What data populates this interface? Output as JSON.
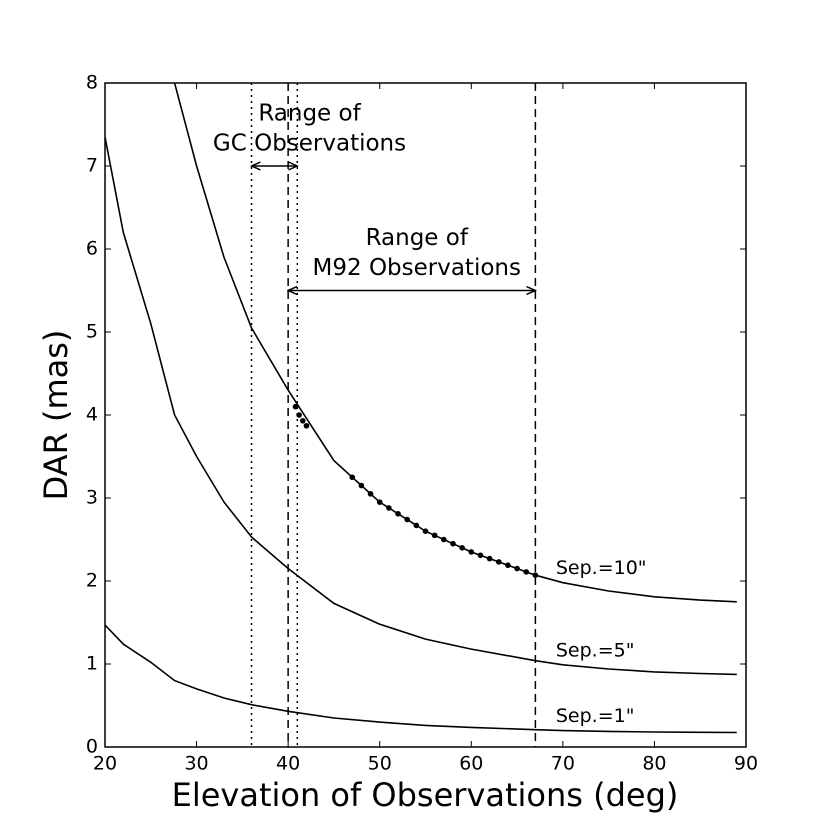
{
  "chart_data": {
    "type": "line",
    "xlabel": "Elevation of Observations (deg)",
    "ylabel": "DAR (mas)",
    "x": [
      20,
      22,
      25,
      27.6,
      30,
      33,
      36,
      40,
      45,
      50,
      55,
      60,
      67,
      70,
      75,
      80,
      85,
      89
    ],
    "series": [
      {
        "name": "Sep.=10\"",
        "color": "#000000",
        "values": [
          null,
          null,
          null,
          8,
          7.0,
          5.9,
          5.05,
          4.3,
          3.45,
          2.95,
          2.6,
          2.35,
          2.07,
          1.98,
          1.88,
          1.81,
          1.77,
          1.75
        ]
      },
      {
        "name": "Sep.=5\"",
        "color": "#000000",
        "values": [
          7.35,
          6.2,
          5.1,
          4.0,
          3.5,
          2.95,
          2.53,
          2.15,
          1.73,
          1.48,
          1.3,
          1.18,
          1.04,
          0.99,
          0.94,
          0.905,
          0.885,
          0.875
        ]
      },
      {
        "name": "Sep.=1\"",
        "color": "#000000",
        "values": [
          1.47,
          1.24,
          1.02,
          0.8,
          0.7,
          0.59,
          0.51,
          0.43,
          0.35,
          0.3,
          0.26,
          0.236,
          0.208,
          0.198,
          0.188,
          0.181,
          0.177,
          0.175
        ]
      }
    ],
    "observations": {
      "color": "#000000",
      "x": [
        40.8,
        41.2,
        41.6,
        42,
        47,
        48,
        49,
        50,
        51,
        52,
        53,
        54,
        55,
        56,
        57,
        58,
        59,
        60,
        61,
        62,
        63,
        64,
        65,
        66,
        67
      ],
      "y": [
        4.1,
        4.0,
        3.93,
        3.87,
        3.25,
        3.15,
        3.05,
        2.95,
        2.88,
        2.81,
        2.74,
        2.67,
        2.6,
        2.55,
        2.5,
        2.45,
        2.4,
        2.35,
        2.31,
        2.27,
        2.23,
        2.19,
        2.15,
        2.11,
        2.07
      ]
    },
    "vlines": [
      {
        "x": 36,
        "style": "dotted"
      },
      {
        "x": 41,
        "style": "dotted"
      },
      {
        "x": 40,
        "style": "dashed"
      },
      {
        "x": 67,
        "style": "dashed"
      }
    ],
    "ranges": [
      {
        "text": [
          "Range of",
          "GC Observations"
        ],
        "x": [
          36,
          41
        ],
        "y": 7.0
      },
      {
        "text": [
          "Range of",
          "M92 Observations"
        ],
        "x": [
          40,
          67
        ],
        "y": 5.5
      }
    ],
    "xlim": [
      20,
      90
    ],
    "xticks": [
      20,
      30,
      40,
      50,
      60,
      70,
      80,
      90
    ],
    "ylim": [
      0,
      8
    ],
    "yticks": [
      0,
      1,
      2,
      3,
      4,
      5,
      6,
      7,
      8
    ]
  }
}
